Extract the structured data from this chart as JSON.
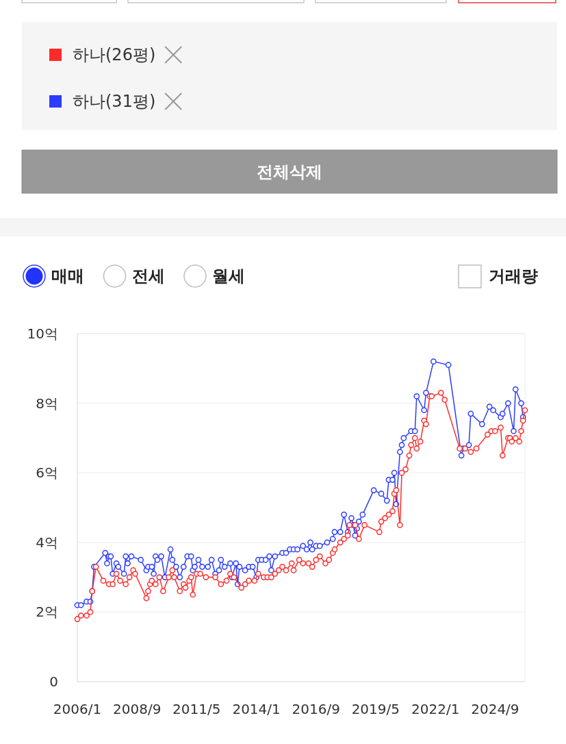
{
  "chart_data": {
    "type": "line",
    "marker": "circle",
    "grid": "y",
    "legend": "top",
    "xlim": [
      "2006-01",
      "2026-01"
    ],
    "xticks": [
      {
        "value": "2006-01",
        "label": "2006/1"
      },
      {
        "value": "2008-09",
        "label": "2008/9"
      },
      {
        "value": "2011-05",
        "label": "2011/5"
      },
      {
        "value": "2014-01",
        "label": "2014/1"
      },
      {
        "value": "2016-09",
        "label": "2016/9"
      },
      {
        "value": "2019-05",
        "label": "2019/5"
      },
      {
        "value": "2022-01",
        "label": "2022/1"
      },
      {
        "value": "2024-09",
        "label": "2024/9"
      }
    ],
    "ylim": [
      0,
      10
    ],
    "yticks": [
      0,
      {
        "value": 2,
        "label": "2억"
      },
      {
        "value": 4,
        "label": "4억"
      },
      {
        "value": 6,
        "label": "6억"
      },
      {
        "value": 8,
        "label": "8억"
      },
      {
        "value": 10,
        "label": "10억"
      }
    ],
    "annotations": [
      "전체삭제",
      "매매",
      "전세",
      "월세",
      "거래량"
    ],
    "series": [
      {
        "name": "하나(26평)",
        "color": "#ff2b2b",
        "x": [
          "2006-01",
          "2006-03",
          "2006-06",
          "2006-08",
          "2006-09",
          "2006-11",
          "2007-03",
          "2007-06",
          "2007-08",
          "2007-10",
          "2007-12",
          "2008-03",
          "2008-05",
          "2008-07",
          "2008-08",
          "2009-02",
          "2009-03",
          "2009-04",
          "2009-05",
          "2009-07",
          "2009-09",
          "2009-11",
          "2010-02",
          "2010-04",
          "2010-05",
          "2010-08",
          "2010-10",
          "2010-11",
          "2011-01",
          "2011-02",
          "2011-03",
          "2011-05",
          "2011-07",
          "2011-10",
          "2012-03",
          "2012-06",
          "2012-09",
          "2012-11",
          "2013-01",
          "2013-05",
          "2013-07",
          "2013-09",
          "2013-12",
          "2014-02",
          "2014-05",
          "2014-07",
          "2014-09",
          "2014-11",
          "2015-01",
          "2015-03",
          "2015-05",
          "2015-08",
          "2015-09",
          "2015-12",
          "2016-02",
          "2016-05",
          "2016-07",
          "2016-09",
          "2016-11",
          "2017-02",
          "2017-04",
          "2017-06",
          "2017-07",
          "2017-10",
          "2017-12",
          "2018-02",
          "2018-03",
          "2018-06",
          "2018-08",
          "2018-11",
          "2019-07",
          "2019-08",
          "2019-10",
          "2019-12",
          "2020-02",
          "2020-03",
          "2020-04",
          "2020-06",
          "2020-07",
          "2020-09",
          "2020-11",
          "2020-12",
          "2021-02",
          "2021-03",
          "2021-05",
          "2021-07",
          "2021-08",
          "2021-10",
          "2021-11",
          "2022-04",
          "2022-06",
          "2023-02",
          "2023-05",
          "2023-08",
          "2023-11",
          "2024-05",
          "2024-07",
          "2024-09",
          "2024-12",
          "2025-01",
          "2025-04",
          "2025-05",
          "2025-06",
          "2025-08",
          "2025-10",
          "2025-11",
          "2025-12",
          "2026-01"
        ],
        "values": [
          1.8,
          1.9,
          1.9,
          2.0,
          2.6,
          3.3,
          2.9,
          2.8,
          2.8,
          3.1,
          2.9,
          2.8,
          3.0,
          3.2,
          3.1,
          2.4,
          2.6,
          2.8,
          2.9,
          2.8,
          3.0,
          2.6,
          3.0,
          3.2,
          3.0,
          2.6,
          2.8,
          2.7,
          2.9,
          3.0,
          2.5,
          3.1,
          3.1,
          3.0,
          3.0,
          2.8,
          2.9,
          3.1,
          3.0,
          2.7,
          2.8,
          2.9,
          2.9,
          3.1,
          3.0,
          3.0,
          3.0,
          3.1,
          3.2,
          3.3,
          3.2,
          3.4,
          3.2,
          3.5,
          3.4,
          3.4,
          3.3,
          3.5,
          3.6,
          3.4,
          3.5,
          3.7,
          3.8,
          4.0,
          4.1,
          4.2,
          4.5,
          4.5,
          4.1,
          4.5,
          4.3,
          4.6,
          4.7,
          4.8,
          4.9,
          5.4,
          5.5,
          4.5,
          6.0,
          6.1,
          6.5,
          6.8,
          7.0,
          6.7,
          6.9,
          7.5,
          7.4,
          8.2,
          8.2,
          8.3,
          8.1,
          6.7,
          6.7,
          6.6,
          6.7,
          7.1,
          7.2,
          7.2,
          7.3,
          6.5,
          7.0,
          7.0,
          6.9,
          7.0,
          6.9,
          7.2,
          7.5,
          7.8
        ]
      },
      {
        "name": "하나(31평)",
        "color": "#2b3cff",
        "x": [
          "2006-01",
          "2006-03",
          "2006-06",
          "2006-08",
          "2006-09",
          "2006-10",
          "2007-04",
          "2007-05",
          "2007-06",
          "2007-07",
          "2007-08",
          "2007-10",
          "2007-11",
          "2008-02",
          "2008-03",
          "2008-04",
          "2008-06",
          "2008-11",
          "2009-02",
          "2009-03",
          "2009-05",
          "2009-06",
          "2009-07",
          "2009-08",
          "2009-10",
          "2009-12",
          "2010-03",
          "2010-04",
          "2010-06",
          "2010-08",
          "2010-10",
          "2010-12",
          "2011-02",
          "2011-03",
          "2011-04",
          "2011-06",
          "2011-08",
          "2011-11",
          "2012-01",
          "2012-03",
          "2012-05",
          "2012-06",
          "2012-08",
          "2012-11",
          "2012-12",
          "2013-02",
          "2013-03",
          "2013-04",
          "2013-07",
          "2013-09",
          "2013-11",
          "2014-01",
          "2014-02",
          "2014-04",
          "2014-06",
          "2014-08",
          "2014-09",
          "2014-11",
          "2015-03",
          "2015-05",
          "2015-07",
          "2015-09",
          "2015-11",
          "2016-02",
          "2016-04",
          "2016-06",
          "2016-07",
          "2016-09",
          "2016-11",
          "2017-03",
          "2017-06",
          "2017-07",
          "2017-10",
          "2017-12",
          "2018-02",
          "2018-04",
          "2018-05",
          "2018-06",
          "2018-07",
          "2018-08",
          "2018-10",
          "2019-04",
          "2019-08",
          "2019-11",
          "2019-12",
          "2020-02",
          "2020-03",
          "2020-04",
          "2020-06",
          "2020-07",
          "2020-08",
          "2020-12",
          "2021-02",
          "2021-03",
          "2021-07",
          "2021-08",
          "2021-12",
          "2022-08",
          "2023-03",
          "2023-04",
          "2023-07",
          "2023-08",
          "2024-02",
          "2024-06",
          "2024-08",
          "2024-12",
          "2025-01",
          "2025-04",
          "2025-07",
          "2025-08",
          "2025-11",
          "2025-12"
        ],
        "values": [
          2.2,
          2.2,
          2.3,
          2.3,
          2.6,
          3.3,
          3.7,
          3.4,
          3.6,
          3.6,
          3.1,
          3.4,
          3.3,
          3.1,
          3.6,
          3.4,
          3.6,
          3.5,
          3.2,
          3.3,
          3.3,
          3.1,
          3.6,
          3.5,
          3.6,
          3.0,
          3.8,
          3.5,
          3.3,
          3.0,
          3.3,
          3.6,
          3.6,
          3.2,
          3.3,
          3.5,
          3.3,
          3.3,
          3.5,
          3.1,
          3.2,
          3.5,
          3.3,
          3.4,
          3.0,
          3.4,
          2.8,
          3.3,
          3.2,
          3.3,
          3.3,
          3.0,
          3.5,
          3.5,
          3.5,
          3.6,
          3.2,
          3.6,
          3.7,
          3.7,
          3.8,
          3.8,
          3.8,
          3.9,
          3.8,
          4.0,
          3.8,
          3.9,
          3.9,
          4.0,
          4.1,
          4.3,
          4.3,
          4.8,
          4.3,
          4.7,
          4.5,
          4.2,
          4.4,
          4.6,
          4.8,
          5.5,
          5.4,
          5.2,
          5.8,
          5.8,
          6.0,
          5.1,
          6.6,
          6.8,
          7.0,
          7.2,
          7.2,
          8.2,
          7.8,
          8.3,
          9.2,
          9.1,
          6.5,
          6.7,
          6.8,
          7.7,
          7.4,
          7.9,
          7.8,
          7.6,
          7.7,
          8.0,
          7.2,
          8.4,
          8.0,
          7.6
        ]
      }
    ]
  }
}
